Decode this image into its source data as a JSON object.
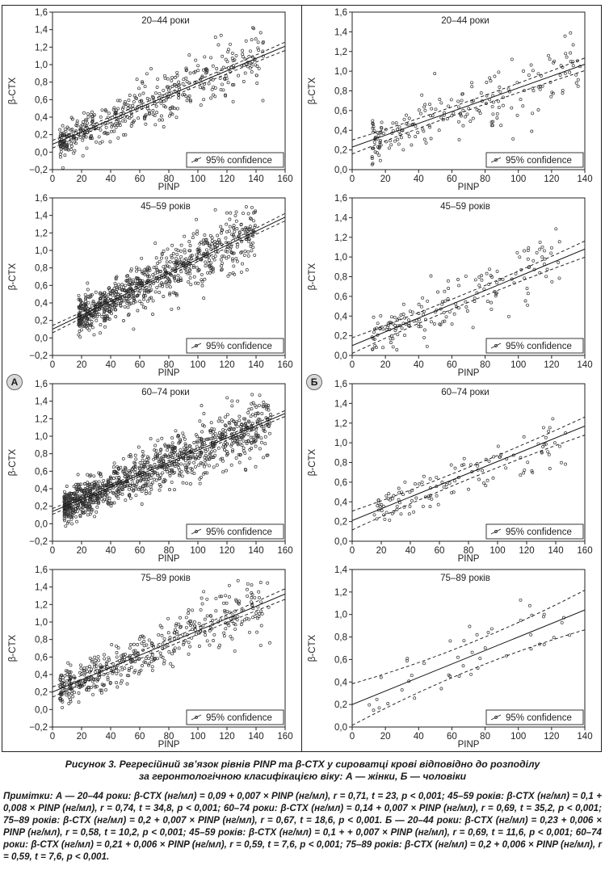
{
  "panel_labels": {
    "a": "А",
    "b": "Б"
  },
  "caption": {
    "line1": "Рисунок 3.  Регресійний зв’язок рівнів PINP та β-CTX у сироватці крові відповідно до розподілу",
    "line2": "за геронтологічною класифікацією віку: А — жінки, Б — чоловіки"
  },
  "note": "Примітки: А — 20–44 роки: β-CTX (нг/мл) = 0,09 + 0,007 × PINP (нг/мл), r = 0,71, t = 23, p < 0,001; 45–59 років: β-CTX (нг/мл) = 0,1 + 0,008 × PINP (нг/мл), r = 0,74, t = 34,8, p < 0,001; 60–74 роки: β-CTX (нг/мл) = 0,14 + 0,007 × PINP (нг/мл), r = 0,69, t = 35,2, p < 0,001; 75–89 років: β-CTX (нг/мл) = 0,2 + 0,007 × PINP (нг/мл), r = 0,67, t = 18,6, p < 0,001. Б — 20–44 роки: β-CTX (нг/мл) = 0,23 + 0,006 × PINP (нг/мл), r = 0,58, t = 10,2, p < 0,001; 45–59 років: β-CTX (нг/мл) = 0,1 + + 0,007 × PINP (нг/мл), r = 0,69, t = 11,6, p < 0,001; 60–74 роки: β-CTX (нг/мл) = 0,21 + 0,006 × PINP (нг/мл), r = 0,59, t = 7,6, p < 0,001; 75–89 років: β-CTX (нг/мл) = 0,2 + 0,006 × PINP (нг/мл), r = 0,59, t = 7,6, p < 0,001.",
  "chart_data": [
    {
      "type": "scatter",
      "group": "А",
      "title": "20–44 роки",
      "xlabel": "PINP",
      "ylabel": "β-CTX",
      "legend": "95% confidence",
      "legend_position": "bottom-right",
      "xlim": [
        0,
        160
      ],
      "ylim": [
        -0.2,
        1.6
      ],
      "xticks": [
        "0",
        "20",
        "40",
        "60",
        "80",
        "100",
        "120",
        "140",
        "160"
      ],
      "yticks": [
        "−0,2",
        "0,0",
        "0,2",
        "0,4",
        "0,6",
        "0,8",
        "1,0",
        "1,2",
        "1,4",
        "1,6"
      ],
      "regression": {
        "intercept": 0.09,
        "slope": 0.007,
        "ci_halfwidth": 0.03
      },
      "n_points": 450,
      "x_range": [
        5,
        145
      ],
      "residual_sd": 0.15
    },
    {
      "type": "scatter",
      "group": "А",
      "title": "45–59 років",
      "xlabel": "PINP",
      "ylabel": "β-CTX",
      "legend": "95% confidence",
      "legend_position": "bottom-right",
      "xlim": [
        0,
        160
      ],
      "ylim": [
        -0.2,
        1.6
      ],
      "xticks": [
        "0",
        "20",
        "40",
        "60",
        "80",
        "100",
        "120",
        "140",
        "160"
      ],
      "yticks": [
        "−0,2",
        "0,0",
        "0,2",
        "0,4",
        "0,6",
        "0,8",
        "1,0",
        "1,2",
        "1,4",
        "1,6"
      ],
      "regression": {
        "intercept": 0.1,
        "slope": 0.008,
        "ci_halfwidth": 0.025
      },
      "n_points": 800,
      "x_range": [
        18,
        140
      ],
      "residual_sd": 0.16
    },
    {
      "type": "scatter",
      "group": "А",
      "title": "60–74 роки",
      "xlabel": "PINP",
      "ylabel": "β-CTX",
      "legend": "95% confidence",
      "legend_position": "bottom-right",
      "xlim": [
        0,
        160
      ],
      "ylim": [
        -0.2,
        1.6
      ],
      "xticks": [
        "0",
        "20",
        "40",
        "60",
        "80",
        "100",
        "120",
        "140",
        "160"
      ],
      "yticks": [
        "−0,2",
        "0,0",
        "0,2",
        "0,4",
        "0,6",
        "0,8",
        "1,0",
        "1,2",
        "1,4",
        "1,6"
      ],
      "regression": {
        "intercept": 0.14,
        "slope": 0.007,
        "ci_halfwidth": 0.022
      },
      "n_points": 1100,
      "x_range": [
        8,
        150
      ],
      "residual_sd": 0.15
    },
    {
      "type": "scatter",
      "group": "А",
      "title": "75–89 років",
      "xlabel": "PINP",
      "ylabel": "β-CTX",
      "legend": "95% confidence",
      "legend_position": "bottom-right",
      "xlim": [
        0,
        160
      ],
      "ylim": [
        -0.2,
        1.6
      ],
      "xticks": [
        "0",
        "20",
        "40",
        "60",
        "80",
        "100",
        "120",
        "140",
        "160"
      ],
      "yticks": [
        "−0,2",
        "0,0",
        "0,2",
        "0,4",
        "0,6",
        "0,8",
        "1,0",
        "1,2",
        "1,4",
        "1,6"
      ],
      "regression": {
        "intercept": 0.2,
        "slope": 0.007,
        "ci_halfwidth": 0.04
      },
      "n_points": 450,
      "x_range": [
        5,
        150
      ],
      "residual_sd": 0.17
    },
    {
      "type": "scatter",
      "group": "Б",
      "title": "20–44 роки",
      "xlabel": "PINP",
      "ylabel": "β-CTX",
      "legend": "95% confidence",
      "legend_position": "bottom-right",
      "xlim": [
        0,
        140
      ],
      "ylim": [
        0.0,
        1.6
      ],
      "xticks": [
        "0",
        "20",
        "40",
        "60",
        "80",
        "100",
        "120",
        "140"
      ],
      "yticks": [
        "0,0",
        "0,2",
        "0,4",
        "0,6",
        "0,8",
        "1,0",
        "1,2",
        "1,4",
        "1,6"
      ],
      "regression": {
        "intercept": 0.23,
        "slope": 0.006,
        "ci_halfwidth": 0.045
      },
      "n_points": 210,
      "x_range": [
        12,
        138
      ],
      "residual_sd": 0.17
    },
    {
      "type": "scatter",
      "group": "Б",
      "title": "45–59 років",
      "xlabel": "PINP",
      "ylabel": "β-CTX",
      "legend": "95% confidence",
      "legend_position": "bottom-right",
      "xlim": [
        0,
        140
      ],
      "ylim": [
        0.0,
        1.6
      ],
      "xticks": [
        "0",
        "20",
        "40",
        "60",
        "80",
        "100",
        "120",
        "140"
      ],
      "yticks": [
        "0,0",
        "0,2",
        "0,4",
        "0,6",
        "0,8",
        "1,0",
        "1,2",
        "1,4",
        "1,6"
      ],
      "regression": {
        "intercept": 0.1,
        "slope": 0.007,
        "ci_halfwidth": 0.05
      },
      "n_points": 170,
      "x_range": [
        12,
        125
      ],
      "residual_sd": 0.15
    },
    {
      "type": "scatter",
      "group": "Б",
      "title": "60–74 роки",
      "xlabel": "PINP",
      "ylabel": "β-CTX",
      "legend": "95% confidence",
      "legend_position": "bottom-right",
      "xlim": [
        0,
        160
      ],
      "ylim": [
        0.0,
        1.6
      ],
      "xticks": [
        "0",
        "20",
        "40",
        "60",
        "80",
        "100",
        "120",
        "140",
        "160"
      ],
      "yticks": [
        "0,0",
        "0,2",
        "0,4",
        "0,6",
        "0,8",
        "1,0",
        "1,2",
        "1,4",
        "1,6"
      ],
      "regression": {
        "intercept": 0.21,
        "slope": 0.006,
        "ci_halfwidth": 0.06
      },
      "n_points": 120,
      "x_range": [
        15,
        150
      ],
      "residual_sd": 0.14
    },
    {
      "type": "scatter",
      "group": "Б",
      "title": "75–89 років",
      "xlabel": "PINP",
      "ylabel": "β-CTX",
      "legend": "95% confidence",
      "legend_position": "bottom-right",
      "xlim": [
        0,
        140
      ],
      "ylim": [
        0.0,
        1.4
      ],
      "xticks": [
        "0",
        "20",
        "40",
        "60",
        "80",
        "100",
        "120",
        "140"
      ],
      "yticks": [
        "0,0",
        "0,2",
        "0,4",
        "0,6",
        "0,8",
        "1,0",
        "1,2",
        "1,4"
      ],
      "regression": {
        "intercept": 0.2,
        "slope": 0.006,
        "ci_halfwidth": 0.12
      },
      "n_points": 45,
      "x_range": [
        10,
        135
      ],
      "residual_sd": 0.16
    }
  ]
}
